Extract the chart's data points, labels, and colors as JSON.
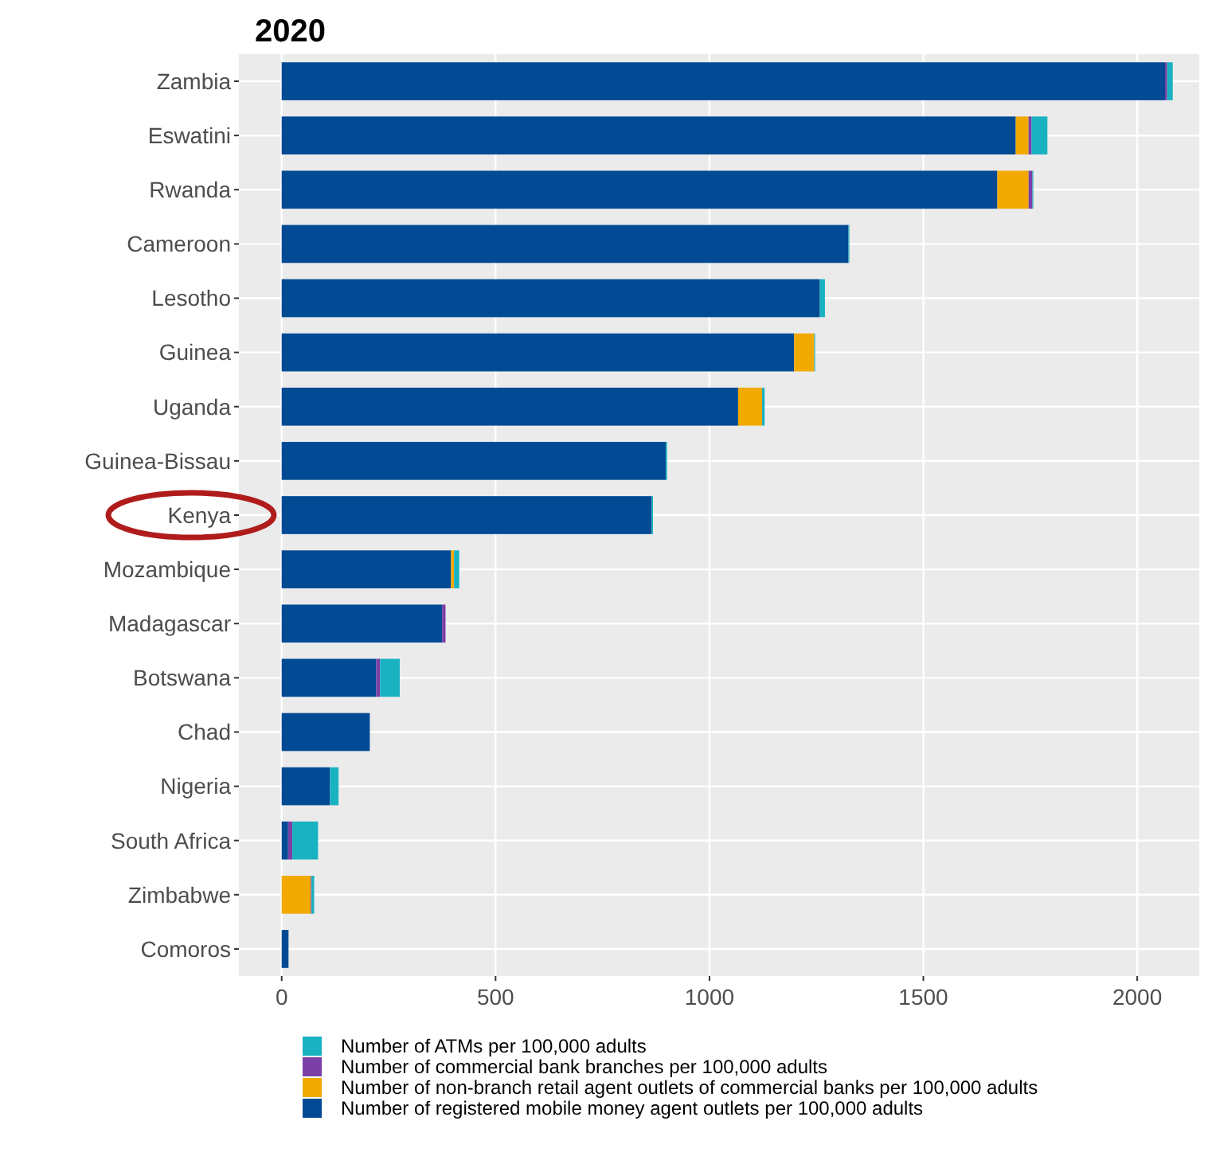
{
  "chart_data": {
    "type": "bar",
    "orientation": "horizontal",
    "stacked": true,
    "title": "2020",
    "categories": [
      "Zambia",
      "Eswatini",
      "Rwanda",
      "Cameroon",
      "Lesotho",
      "Guinea",
      "Uganda",
      "Guinea-Bissau",
      "Kenya",
      "Mozambique",
      "Madagascar",
      "Botswana",
      "Chad",
      "Nigeria",
      "South Africa",
      "Zimbabwe",
      "Comoros"
    ],
    "series": [
      {
        "name": "Number of registered mobile money agent outlets per 100,000 adults",
        "color": "#034a94",
        "values": [
          2065,
          1716,
          1673,
          1325,
          1258,
          1198,
          1067,
          898,
          865,
          396,
          375,
          221,
          206,
          113,
          15,
          0,
          16
        ]
      },
      {
        "name": "Number of non-branch retail agent outlets of commercial banks per 100,000 adults",
        "color": "#f2a900",
        "values": [
          0,
          30,
          73,
          0,
          0,
          47,
          56,
          0,
          0,
          7,
          0,
          0,
          0,
          0,
          0,
          68,
          0
        ]
      },
      {
        "name": "Number of commercial bank branches per 100,000 adults",
        "color": "#7b3fa6",
        "values": [
          5,
          7,
          9,
          0,
          0,
          0,
          0,
          0,
          0,
          0,
          8,
          9,
          0,
          0,
          10,
          2,
          0
        ]
      },
      {
        "name": "Number of ATMs per 100,000 adults",
        "color": "#19b2c1",
        "values": [
          13,
          37,
          2,
          2,
          12,
          2,
          6,
          3,
          3,
          12,
          0,
          46,
          0,
          20,
          60,
          6,
          0
        ]
      }
    ],
    "xlim": [
      -100,
      2145
    ],
    "xticks": [
      0,
      500,
      1000,
      1500,
      2000
    ],
    "grid": true,
    "legend": "bottom"
  }
}
